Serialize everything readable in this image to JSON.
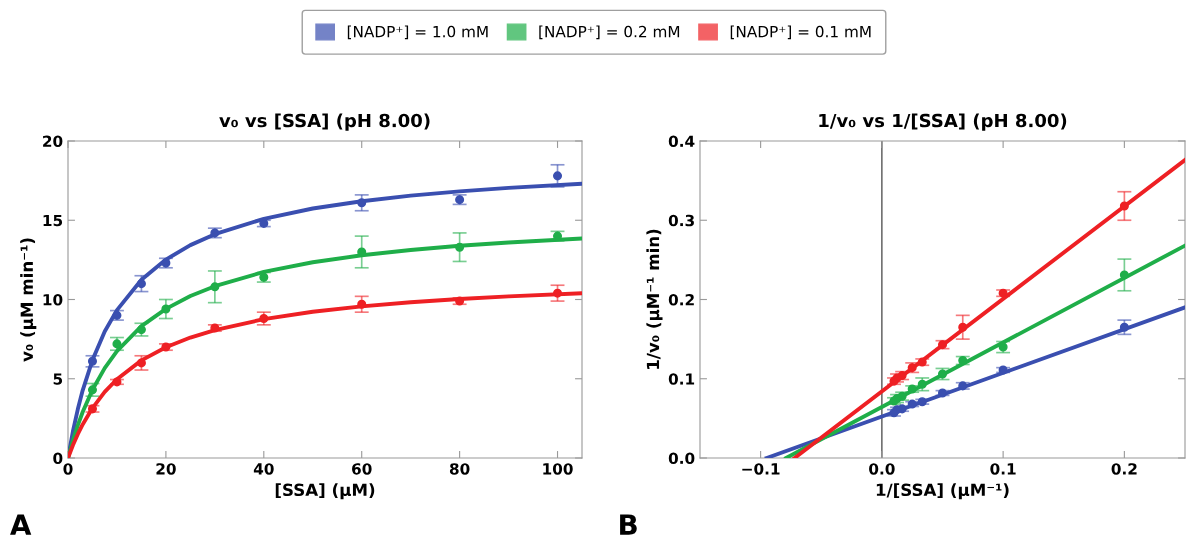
{
  "chart_data": [
    {
      "type": "scatter",
      "title": "v₀ vs [SSA] (pH 8.00)",
      "xlabel": "[SSA] (μM)",
      "ylabel": "v₀ (μM min⁻¹)",
      "annotations": [
        "A"
      ],
      "legend": "top",
      "xlim": [
        0,
        105
      ],
      "ylim": [
        0,
        20
      ],
      "xticks": [
        0,
        20,
        40,
        60,
        80,
        100
      ],
      "yticks": [
        0,
        5,
        10,
        15,
        20
      ],
      "series": [
        {
          "name": "[NADP⁺] = 1.0 mM",
          "color": "#3a4fb0",
          "marker": "circle",
          "x": [
            5,
            10,
            15,
            20,
            30,
            40,
            60,
            80,
            100
          ],
          "values": [
            6.1,
            9.0,
            11.0,
            12.3,
            14.2,
            14.8,
            16.1,
            16.3,
            17.8
          ],
          "errors": [
            0.35,
            0.3,
            0.5,
            0.3,
            0.3,
            0.2,
            0.5,
            0.3,
            0.7
          ]
        },
        {
          "name": "[NADP⁺] = 0.2 mM",
          "color": "#1fae49",
          "marker": "circle",
          "x": [
            5,
            10,
            15,
            20,
            30,
            40,
            60,
            80,
            100
          ],
          "values": [
            4.3,
            7.2,
            8.1,
            9.4,
            10.8,
            11.4,
            13.0,
            13.3,
            14.0
          ],
          "errors": [
            0.4,
            0.4,
            0.4,
            0.6,
            1.0,
            0.3,
            1.0,
            0.9,
            0.3
          ]
        },
        {
          "name": "[NADP⁺] = 0.1 mM",
          "color": "#ee2024",
          "marker": "circle",
          "x": [
            5,
            10,
            15,
            20,
            30,
            40,
            60,
            80,
            100
          ],
          "values": [
            3.1,
            4.8,
            6.0,
            7.0,
            8.2,
            8.8,
            9.7,
            9.9,
            10.4
          ],
          "errors": [
            0.2,
            0.15,
            0.45,
            0.2,
            0.2,
            0.4,
            0.5,
            0.2,
            0.5
          ]
        },
        {
          "type": "line",
          "color": "#3a4fb0",
          "x": [
            0,
            1,
            2,
            3,
            5,
            7.5,
            10,
            15,
            20,
            25,
            30,
            40,
            50,
            60,
            70,
            80,
            90,
            105
          ],
          "values": [
            0,
            1.67,
            3.07,
            4.27,
            6.18,
            7.98,
            9.33,
            11.24,
            12.52,
            13.43,
            14.12,
            15.09,
            15.74,
            16.2,
            16.55,
            16.82,
            17.04,
            17.3
          ]
        },
        {
          "type": "line",
          "color": "#1fae49",
          "x": [
            0,
            1,
            2,
            3,
            5,
            7.5,
            10,
            15,
            20,
            25,
            30,
            40,
            50,
            60,
            70,
            80,
            90,
            105
          ],
          "values": [
            0,
            1.1,
            2.06,
            2.9,
            4.31,
            5.67,
            6.74,
            8.32,
            9.41,
            10.22,
            10.84,
            11.74,
            12.35,
            12.79,
            13.12,
            13.39,
            13.6,
            13.85
          ]
        },
        {
          "type": "line",
          "color": "#ee2024",
          "x": [
            0,
            1,
            2,
            3,
            5,
            7.5,
            10,
            15,
            20,
            25,
            30,
            40,
            50,
            60,
            70,
            80,
            90,
            105
          ],
          "values": [
            0,
            0.8,
            1.5,
            2.12,
            3.15,
            4.17,
            4.97,
            6.16,
            6.99,
            7.6,
            8.07,
            8.76,
            9.23,
            9.57,
            9.83,
            10.03,
            10.2,
            10.39
          ]
        }
      ]
    },
    {
      "type": "scatter",
      "title": "1/v₀ vs 1/[SSA] (pH 8.00)",
      "xlabel": "1/[SSA] (μM⁻¹)",
      "ylabel": "1/v₀ (μM⁻¹ min)",
      "annotations": [
        "B"
      ],
      "xlim": [
        -0.15,
        0.25
      ],
      "ylim": [
        0,
        0.4
      ],
      "xticks": [
        {
          "value": -0.1,
          "label": "−0.1"
        },
        {
          "value": 0,
          "label": "0.0"
        },
        0.1,
        0.2
      ],
      "yticks": [
        {
          "value": 0,
          "label": "0.0"
        },
        0.1,
        0.2,
        0.3,
        0.4
      ],
      "ref_lines": [
        {
          "axis": "x",
          "value": 0,
          "color": "#555555"
        }
      ],
      "series": [
        {
          "color": "#3a4fb0",
          "marker": "circle",
          "x": [
            0.2,
            0.1,
            0.0667,
            0.05,
            0.0333,
            0.025,
            0.0167,
            0.0125,
            0.01
          ],
          "values": [
            0.165,
            0.111,
            0.091,
            0.082,
            0.071,
            0.068,
            0.062,
            0.061,
            0.057
          ],
          "errors": [
            0.009,
            0.003,
            0.004,
            0.003,
            0.003,
            0.003,
            0.003,
            0.003,
            0.004
          ]
        },
        {
          "color": "#1fae49",
          "marker": "circle",
          "x": [
            0.2,
            0.1,
            0.0667,
            0.05,
            0.0333,
            0.025,
            0.0167,
            0.0125,
            0.01
          ],
          "values": [
            0.231,
            0.14,
            0.123,
            0.106,
            0.093,
            0.087,
            0.078,
            0.075,
            0.072
          ],
          "errors": [
            0.02,
            0.007,
            0.005,
            0.007,
            0.008,
            0.004,
            0.005,
            0.005,
            0.004
          ]
        },
        {
          "color": "#ee2024",
          "marker": "circle",
          "x": [
            0.2,
            0.1,
            0.0667,
            0.05,
            0.0333,
            0.025,
            0.0167,
            0.0125,
            0.01
          ],
          "values": [
            0.318,
            0.208,
            0.165,
            0.143,
            0.121,
            0.114,
            0.104,
            0.101,
            0.097
          ],
          "errors": [
            0.018,
            0.004,
            0.015,
            0.005,
            0.004,
            0.006,
            0.005,
            0.005,
            0.004
          ]
        },
        {
          "type": "line",
          "color": "#3a4fb0",
          "x": [
            -0.095,
            0.25
          ],
          "values": [
            0,
            0.19
          ]
        },
        {
          "type": "line",
          "color": "#1fae49",
          "x": [
            -0.079,
            0.25
          ],
          "values": [
            0,
            0.268
          ]
        },
        {
          "type": "line",
          "color": "#ee2024",
          "x": [
            -0.072,
            0.25
          ],
          "values": [
            0,
            0.376
          ]
        }
      ]
    }
  ]
}
